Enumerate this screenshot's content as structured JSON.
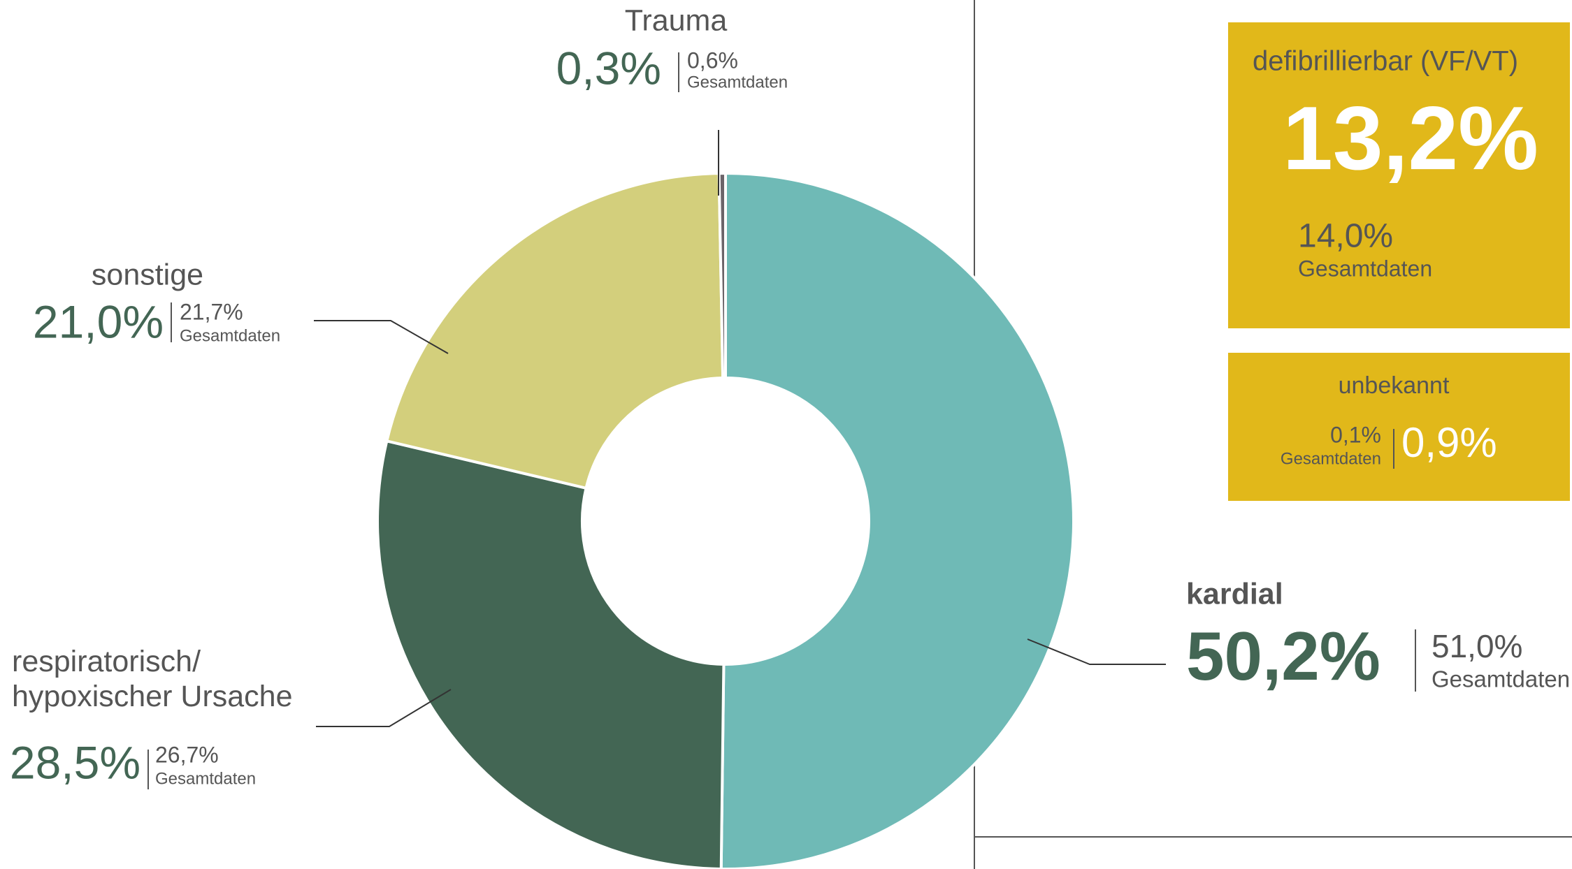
{
  "chart_data": {
    "type": "donut",
    "categories": [
      "kardial",
      "respiratorisch/ hypoxischer Ursache",
      "sonstige",
      "Trauma"
    ],
    "values": [
      50.2,
      28.5,
      21.0,
      0.3
    ],
    "value_labels": [
      "50,2%",
      "28,5%",
      "21,0%",
      "0,3%"
    ],
    "colors": [
      "#6fbab6",
      "#436654",
      "#d3cf7c",
      "#6b6469"
    ],
    "total_values": [
      51.0,
      26.7,
      21.7,
      0.6
    ],
    "total_labels": [
      "51,0%",
      "26,7%",
      "21,7%",
      "0,6%"
    ],
    "total_caption": "Gesamtdaten"
  },
  "panels": [
    {
      "title": "defibrillierbar (VF/VT)",
      "value": 13.2,
      "value_label": "13,2%",
      "total_value": 14.0,
      "total_label": "14,0%",
      "caption": "Gesamtdaten",
      "color": "#e1b81a"
    },
    {
      "title": "unbekannt",
      "value": 0.9,
      "value_label": "0,9%",
      "total_value": 0.1,
      "total_label": "0,1%",
      "caption": "Gesamtdaten",
      "color": "#e1b81a"
    }
  ]
}
